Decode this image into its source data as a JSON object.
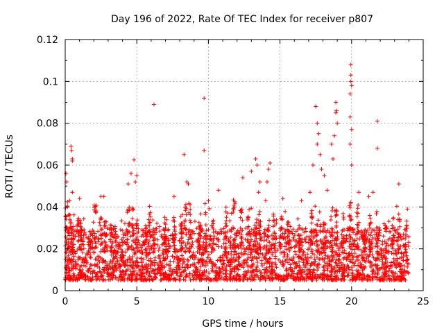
{
  "chart_data": {
    "type": "scatter",
    "title": "Day 196 of 2022, Rate Of TEC Index for receiver p807",
    "xlabel": "GPS time / hours",
    "ylabel": "ROTI / TECUs",
    "xlim": [
      0,
      25
    ],
    "ylim": [
      0,
      0.12
    ],
    "xticks": [
      0,
      5,
      10,
      15,
      20,
      25
    ],
    "xtick_labels": [
      "0",
      "5",
      "10",
      "15",
      "20",
      "25"
    ],
    "yticks": [
      0,
      0.02,
      0.04,
      0.06,
      0.08,
      0.1,
      0.12
    ],
    "ytick_labels": [
      "0",
      "0.02",
      "0.04",
      "0.06",
      "0.08",
      "0.1",
      "0.12"
    ],
    "grid": true,
    "marker": "+",
    "series_color": "#ff0000",
    "x_data_range": [
      0,
      24
    ],
    "dense_band": [
      0.005,
      0.03
    ],
    "outliers": [
      {
        "x": 0.05,
        "y": 0.056
      },
      {
        "x": 0.1,
        "y": 0.052
      },
      {
        "x": 0.4,
        "y": 0.069
      },
      {
        "x": 0.45,
        "y": 0.067
      },
      {
        "x": 0.5,
        "y": 0.063
      },
      {
        "x": 0.5,
        "y": 0.062
      },
      {
        "x": 0.3,
        "y": 0.043
      },
      {
        "x": 0.5,
        "y": 0.047
      },
      {
        "x": 1.0,
        "y": 0.044
      },
      {
        "x": 2.5,
        "y": 0.045
      },
      {
        "x": 2.7,
        "y": 0.045
      },
      {
        "x": 4.4,
        "y": 0.051
      },
      {
        "x": 4.6,
        "y": 0.056
      },
      {
        "x": 4.8,
        "y": 0.0625
      },
      {
        "x": 5.0,
        "y": 0.055
      },
      {
        "x": 4.9,
        "y": 0.052
      },
      {
        "x": 6.2,
        "y": 0.089
      },
      {
        "x": 7.6,
        "y": 0.045
      },
      {
        "x": 8.3,
        "y": 0.065
      },
      {
        "x": 8.5,
        "y": 0.052
      },
      {
        "x": 8.6,
        "y": 0.051
      },
      {
        "x": 9.7,
        "y": 0.092
      },
      {
        "x": 9.7,
        "y": 0.067
      },
      {
        "x": 10.0,
        "y": 0.043
      },
      {
        "x": 10.7,
        "y": 0.048
      },
      {
        "x": 12.4,
        "y": 0.054
      },
      {
        "x": 13.0,
        "y": 0.057
      },
      {
        "x": 13.3,
        "y": 0.063
      },
      {
        "x": 13.4,
        "y": 0.06
      },
      {
        "x": 13.6,
        "y": 0.052
      },
      {
        "x": 13.5,
        "y": 0.047
      },
      {
        "x": 14.2,
        "y": 0.058
      },
      {
        "x": 14.3,
        "y": 0.061
      },
      {
        "x": 14.1,
        "y": 0.052
      },
      {
        "x": 14.0,
        "y": 0.043
      },
      {
        "x": 15.2,
        "y": 0.044
      },
      {
        "x": 16.5,
        "y": 0.043
      },
      {
        "x": 17.1,
        "y": 0.047
      },
      {
        "x": 17.3,
        "y": 0.06
      },
      {
        "x": 17.5,
        "y": 0.088
      },
      {
        "x": 17.6,
        "y": 0.08
      },
      {
        "x": 17.7,
        "y": 0.075
      },
      {
        "x": 17.6,
        "y": 0.07
      },
      {
        "x": 17.8,
        "y": 0.065
      },
      {
        "x": 17.9,
        "y": 0.058
      },
      {
        "x": 18.1,
        "y": 0.055
      },
      {
        "x": 18.3,
        "y": 0.048
      },
      {
        "x": 18.6,
        "y": 0.07
      },
      {
        "x": 18.8,
        "y": 0.074
      },
      {
        "x": 18.9,
        "y": 0.09
      },
      {
        "x": 18.95,
        "y": 0.086
      },
      {
        "x": 18.9,
        "y": 0.085
      },
      {
        "x": 19.0,
        "y": 0.08
      },
      {
        "x": 18.7,
        "y": 0.063
      },
      {
        "x": 19.9,
        "y": 0.094
      },
      {
        "x": 19.95,
        "y": 0.1
      },
      {
        "x": 19.95,
        "y": 0.103
      },
      {
        "x": 19.95,
        "y": 0.108
      },
      {
        "x": 20.0,
        "y": 0.098
      },
      {
        "x": 19.9,
        "y": 0.083
      },
      {
        "x": 20.0,
        "y": 0.077
      },
      {
        "x": 19.9,
        "y": 0.07
      },
      {
        "x": 20.0,
        "y": 0.06
      },
      {
        "x": 20.5,
        "y": 0.047
      },
      {
        "x": 21.8,
        "y": 0.081
      },
      {
        "x": 21.8,
        "y": 0.068
      },
      {
        "x": 21.5,
        "y": 0.047
      },
      {
        "x": 21.2,
        "y": 0.045
      },
      {
        "x": 23.3,
        "y": 0.051
      },
      {
        "x": 23.9,
        "y": 0.039
      }
    ]
  }
}
